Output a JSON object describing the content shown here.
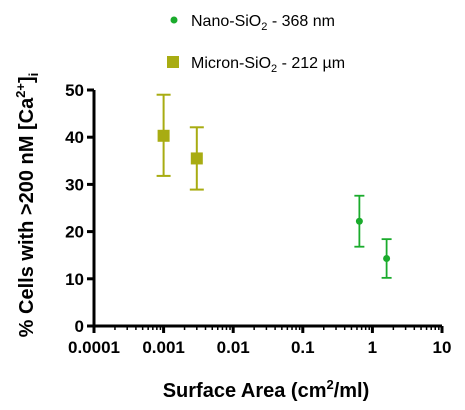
{
  "chart_data": {
    "type": "scatter",
    "xscale": "log",
    "xlim": [
      0.0001,
      10
    ],
    "ylim": [
      0,
      50
    ],
    "x_ticks": [
      "0.0001",
      "0.001",
      "0.01",
      "0.1",
      "1",
      "10"
    ],
    "y_ticks": [
      "0",
      "10",
      "20",
      "30",
      "40",
      "50"
    ],
    "xlabel": {
      "main": "Surface Area (cm",
      "sup": "2",
      "tail": "/ml)"
    },
    "ylabel": {
      "main": "% Cells with >200 nM [Ca",
      "sup": "2+",
      "close": "]",
      "sub": "i"
    },
    "grid": false,
    "legend_position": "top",
    "series": [
      {
        "name": {
          "pre": "Nano-SiO",
          "sub": "2",
          "post": " - 368 nm"
        },
        "marker": "circle",
        "color": "#1aab2c",
        "points": [
          {
            "x": 0.65,
            "y": 22.2,
            "lo": 16.8,
            "hi": 27.6
          },
          {
            "x": 1.6,
            "y": 14.3,
            "lo": 10.2,
            "hi": 18.4
          }
        ]
      },
      {
        "name": {
          "pre": "Micron-SiO",
          "sub": "2",
          "post": " - 212 µm"
        },
        "marker": "square",
        "color": "#a8ac12",
        "points": [
          {
            "x": 0.001,
            "y": 40.3,
            "lo": 31.8,
            "hi": 49.0
          },
          {
            "x": 0.003,
            "y": 35.5,
            "lo": 28.9,
            "hi": 42.1
          }
        ]
      }
    ]
  }
}
